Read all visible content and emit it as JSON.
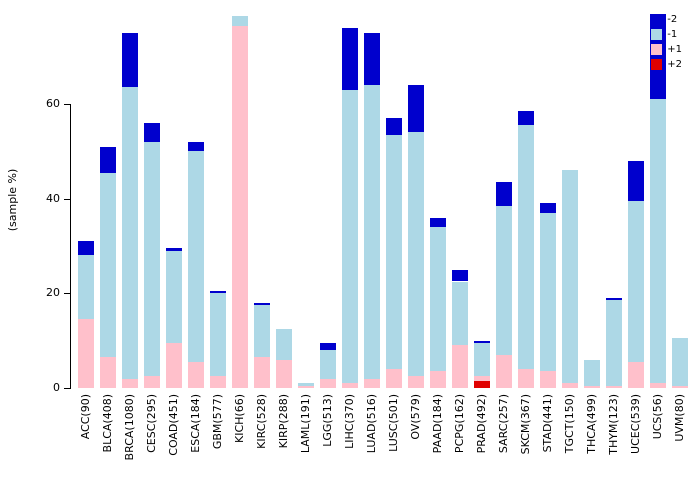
{
  "chart_data": {
    "type": "bar",
    "stacked": true,
    "title": "",
    "xlabel": "",
    "ylabel": "(sample %)",
    "ylim": [
      0,
      82
    ],
    "yticks": [
      0,
      20,
      40,
      60
    ],
    "grid": false,
    "legend_position": "top-right",
    "legend": [
      {
        "label": "-2",
        "color": "#0000CD"
      },
      {
        "label": "-1",
        "color": "#ADD8E6"
      },
      {
        "label": "+1",
        "color": "#FFC0CB"
      },
      {
        "label": "+2",
        "color": "#E00000"
      }
    ],
    "categories": [
      "ACC(90)",
      "BLCA(408)",
      "BRCA(1080)",
      "CESC(295)",
      "COAD(451)",
      "ESCA(184)",
      "GBM(577)",
      "KICH(66)",
      "KIRC(528)",
      "KIRP(288)",
      "LAML(191)",
      "LGG(513)",
      "LIHC(370)",
      "LUAD(516)",
      "LUSC(501)",
      "OV(579)",
      "PAAD(184)",
      "PCPG(162)",
      "PRAD(492)",
      "SARC(257)",
      "SKCM(367)",
      "STAD(441)",
      "TGCT(150)",
      "THCA(499)",
      "THYM(123)",
      "UCEC(539)",
      "UCS(56)",
      "UVM(80)"
    ],
    "stack_order_bottom_to_top": [
      "+2",
      "+1",
      "-1",
      "-2"
    ],
    "series": [
      {
        "name": "+2",
        "color": "#E00000",
        "values": [
          0,
          0,
          0,
          0,
          0,
          0,
          0,
          0,
          0,
          0,
          0,
          0,
          0,
          0,
          0,
          0,
          0,
          0,
          1.5,
          0,
          0,
          0,
          0,
          0,
          0,
          0,
          0,
          0
        ]
      },
      {
        "name": "+1",
        "color": "#FFC0CB",
        "values": [
          14.5,
          6.5,
          2,
          2.5,
          9.5,
          5.5,
          2.5,
          76.5,
          6.5,
          6,
          0.5,
          2,
          1,
          2,
          4,
          2.5,
          3.5,
          9,
          1,
          7,
          4,
          3.5,
          1,
          0.5,
          0.5,
          5.5,
          1,
          0.5
        ]
      },
      {
        "name": "-1",
        "color": "#ADD8E6",
        "values": [
          13.5,
          39,
          61.5,
          49.5,
          19.5,
          44.5,
          17.5,
          2,
          11,
          6.5,
          0.5,
          6,
          62,
          62,
          49.5,
          51.5,
          30.5,
          13.5,
          7,
          31.5,
          51.5,
          33.5,
          45,
          5.5,
          18,
          34,
          60,
          10
        ]
      },
      {
        "name": "-2",
        "color": "#0000CD",
        "values": [
          3,
          5.5,
          11.5,
          4,
          0.5,
          2,
          0.5,
          0,
          0.5,
          0,
          0,
          1.5,
          13,
          11,
          3.5,
          10,
          2,
          2.5,
          0.5,
          5,
          3,
          2,
          0,
          0,
          0.5,
          8.5,
          18,
          0
        ]
      }
    ]
  }
}
